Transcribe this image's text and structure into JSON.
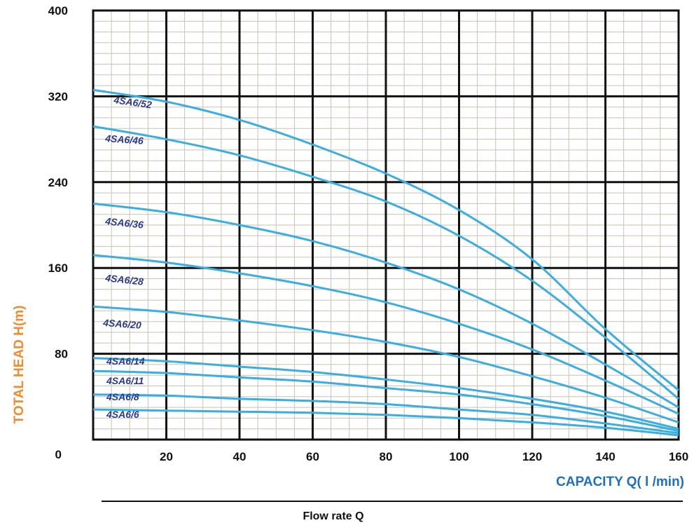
{
  "chart_data": {
    "type": "line",
    "xlabel": "CAPACITY Q( l /min)",
    "ylabel": "TOTAL HEAD H(m)",
    "footer_label": "Flow rate Q",
    "xlim": [
      0,
      160
    ],
    "ylim": [
      0,
      400
    ],
    "x_ticks": [
      "20",
      "40",
      "60",
      "80",
      "100",
      "120",
      "140",
      "160"
    ],
    "y_ticks": [
      "0",
      "80",
      "160",
      "240",
      "320",
      "400"
    ],
    "grid": true,
    "colors": {
      "curve": "#3aaee0",
      "curve_label": "#2b3a8f",
      "ylabel": "#f28a2e",
      "xlabel": "#1f6fbf",
      "major_grid": "#111111",
      "minor_grid": "#c9c1b2"
    },
    "series": [
      {
        "name": "4SA6/52",
        "x": [
          0,
          20,
          40,
          60,
          80,
          100,
          120,
          140,
          160
        ],
        "y": [
          326,
          315,
          298,
          275,
          248,
          214,
          168,
          103,
          46
        ]
      },
      {
        "name": "4SA6/46",
        "x": [
          0,
          20,
          40,
          60,
          80,
          100,
          120,
          140,
          160
        ],
        "y": [
          292,
          280,
          265,
          245,
          222,
          190,
          148,
          95,
          38
        ]
      },
      {
        "name": "4SA6/36",
        "x": [
          0,
          20,
          40,
          60,
          80,
          100,
          120,
          140,
          160
        ],
        "y": [
          220,
          212,
          200,
          185,
          165,
          140,
          108,
          70,
          30
        ]
      },
      {
        "name": "4SA6/28",
        "x": [
          0,
          20,
          40,
          60,
          80,
          100,
          120,
          140,
          160
        ],
        "y": [
          172,
          165,
          155,
          143,
          128,
          108,
          84,
          55,
          24
        ]
      },
      {
        "name": "4SA6/20",
        "x": [
          0,
          20,
          40,
          60,
          80,
          100,
          120,
          140,
          160
        ],
        "y": [
          124,
          119,
          111,
          102,
          91,
          77,
          59,
          39,
          16
        ]
      },
      {
        "name": "4SA6/14",
        "x": [
          0,
          20,
          40,
          60,
          80,
          100,
          120,
          140,
          160
        ],
        "y": [
          76,
          73,
          68,
          63,
          56,
          48,
          38,
          26,
          10
        ]
      },
      {
        "name": "4SA6/11",
        "x": [
          0,
          20,
          40,
          60,
          80,
          100,
          120,
          140,
          160
        ],
        "y": [
          64,
          62,
          58,
          54,
          48,
          42,
          33,
          22,
          8
        ]
      },
      {
        "name": "4SA6/8",
        "x": [
          0,
          20,
          40,
          60,
          80,
          100,
          120,
          140,
          160
        ],
        "y": [
          42,
          41,
          38,
          36,
          33,
          28,
          23,
          15,
          6
        ]
      },
      {
        "name": "4SA6/6",
        "x": [
          0,
          20,
          40,
          60,
          80,
          100,
          120,
          140,
          160
        ],
        "y": [
          28,
          27,
          26,
          25,
          23,
          20,
          16,
          11,
          4
        ]
      }
    ]
  }
}
